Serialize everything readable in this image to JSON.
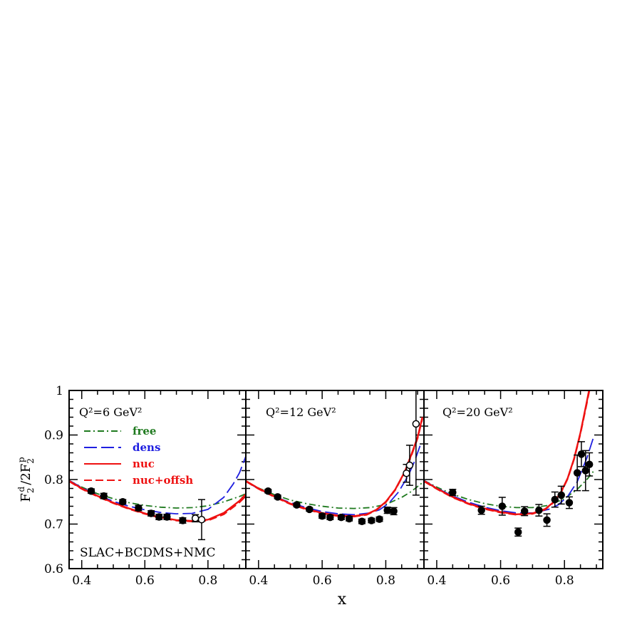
{
  "chart_data": {
    "type": "line",
    "xlabel": "x",
    "ylabel": "F2d/2F2p",
    "ylim": [
      0.6,
      1.0
    ],
    "yticks": [
      "0.6",
      "0.7",
      "0.8",
      "0.9",
      "1"
    ],
    "grid": false,
    "dataset_label": "SLAC+BCDMS+NMC",
    "legend": {
      "placement": "top-left of first panel",
      "entries": [
        {
          "label": "free",
          "color": "#1f7a1f",
          "style": "dash-dot"
        },
        {
          "label": "dens",
          "color": "#1f1fe0",
          "style": "long-dash"
        },
        {
          "label": "nuc",
          "color": "#ee1111",
          "style": "solid"
        },
        {
          "label": "nuc+offsh",
          "color": "#ee1111",
          "style": "dashed"
        }
      ]
    },
    "panels": [
      {
        "title": "Q²=6 GeV²",
        "xlim": [
          0.36,
          0.92
        ],
        "xticks": [
          "0.4",
          "0.6",
          "0.8"
        ],
        "data_filled": [
          {
            "x": 0.43,
            "y": 0.774,
            "err": 0.005
          },
          {
            "x": 0.47,
            "y": 0.763,
            "err": 0.006
          },
          {
            "x": 0.53,
            "y": 0.75,
            "err": 0.005
          },
          {
            "x": 0.58,
            "y": 0.736,
            "err": 0.006
          },
          {
            "x": 0.62,
            "y": 0.724,
            "err": 0.006
          },
          {
            "x": 0.645,
            "y": 0.716,
            "err": 0.006
          },
          {
            "x": 0.67,
            "y": 0.716,
            "err": 0.006
          },
          {
            "x": 0.72,
            "y": 0.708,
            "err": 0.006
          }
        ],
        "data_open": [
          {
            "x": 0.76,
            "y": 0.713,
            "err": 0.008
          },
          {
            "x": 0.78,
            "y": 0.71,
            "err": 0.045
          }
        ],
        "curves": {
          "free": {
            "x": [
              0.36,
              0.4,
              0.45,
              0.5,
              0.55,
              0.6,
              0.65,
              0.7,
              0.75,
              0.8,
              0.85,
              0.9,
              0.92
            ],
            "y": [
              0.798,
              0.783,
              0.768,
              0.757,
              0.748,
              0.742,
              0.738,
              0.736,
              0.737,
              0.741,
              0.75,
              0.762,
              0.768
            ]
          },
          "dens": {
            "x": [
              0.36,
              0.4,
              0.45,
              0.5,
              0.55,
              0.6,
              0.65,
              0.7,
              0.75,
              0.8,
              0.85,
              0.88,
              0.9,
              0.92
            ],
            "y": [
              0.798,
              0.782,
              0.765,
              0.751,
              0.74,
              0.732,
              0.726,
              0.723,
              0.724,
              0.733,
              0.76,
              0.79,
              0.815,
              0.852
            ]
          },
          "nuc": {
            "x": [
              0.36,
              0.4,
              0.45,
              0.5,
              0.55,
              0.6,
              0.65,
              0.7,
              0.75,
              0.8,
              0.85,
              0.9,
              0.92
            ],
            "y": [
              0.797,
              0.78,
              0.763,
              0.748,
              0.735,
              0.724,
              0.715,
              0.709,
              0.707,
              0.71,
              0.725,
              0.752,
              0.767
            ]
          },
          "nuc+offsh": {
            "x": [
              0.36,
              0.4,
              0.45,
              0.5,
              0.55,
              0.6,
              0.65,
              0.7,
              0.75,
              0.8,
              0.85,
              0.9,
              0.92
            ],
            "y": [
              0.796,
              0.779,
              0.762,
              0.747,
              0.734,
              0.723,
              0.714,
              0.708,
              0.706,
              0.708,
              0.722,
              0.749,
              0.763
            ]
          }
        }
      },
      {
        "title": "Q²=12 GeV²",
        "xlim": [
          0.36,
          0.92
        ],
        "xticks": [
          "0.4",
          "0.6",
          "0.8"
        ],
        "data_filled": [
          {
            "x": 0.43,
            "y": 0.774,
            "err": 0.004
          },
          {
            "x": 0.46,
            "y": 0.761,
            "err": 0.004
          },
          {
            "x": 0.52,
            "y": 0.743,
            "err": 0.004
          },
          {
            "x": 0.56,
            "y": 0.733,
            "err": 0.004
          },
          {
            "x": 0.6,
            "y": 0.718,
            "err": 0.005
          },
          {
            "x": 0.625,
            "y": 0.715,
            "err": 0.005
          },
          {
            "x": 0.66,
            "y": 0.715,
            "err": 0.005
          },
          {
            "x": 0.685,
            "y": 0.712,
            "err": 0.005
          },
          {
            "x": 0.725,
            "y": 0.706,
            "err": 0.005
          },
          {
            "x": 0.755,
            "y": 0.708,
            "err": 0.005
          },
          {
            "x": 0.78,
            "y": 0.711,
            "err": 0.005
          },
          {
            "x": 0.805,
            "y": 0.731,
            "err": 0.007
          },
          {
            "x": 0.825,
            "y": 0.729,
            "err": 0.008
          }
        ],
        "data_open": [
          {
            "x": 0.865,
            "y": 0.814,
            "err": 0.02
          },
          {
            "x": 0.875,
            "y": 0.832,
            "err": 0.045
          },
          {
            "x": 0.895,
            "y": 0.925,
            "err": 0.16
          }
        ],
        "curves": {
          "free": {
            "x": [
              0.36,
              0.4,
              0.45,
              0.5,
              0.55,
              0.6,
              0.65,
              0.7,
              0.75,
              0.8,
              0.85,
              0.88,
              0.91,
              0.92
            ],
            "y": [
              0.796,
              0.781,
              0.766,
              0.754,
              0.746,
              0.74,
              0.736,
              0.735,
              0.737,
              0.744,
              0.76,
              0.773,
              0.79,
              0.797
            ]
          },
          "dens": {
            "x": [
              0.36,
              0.4,
              0.45,
              0.5,
              0.55,
              0.6,
              0.65,
              0.7,
              0.75,
              0.78,
              0.81,
              0.84,
              0.87,
              0.89,
              0.91
            ],
            "y": [
              0.796,
              0.779,
              0.762,
              0.748,
              0.737,
              0.728,
              0.723,
              0.721,
              0.725,
              0.732,
              0.747,
              0.772,
              0.808,
              0.84,
              0.88
            ]
          },
          "nuc": {
            "x": [
              0.36,
              0.4,
              0.45,
              0.5,
              0.55,
              0.6,
              0.65,
              0.7,
              0.74,
              0.77,
              0.8,
              0.83,
              0.86,
              0.88,
              0.9,
              0.915
            ],
            "y": [
              0.797,
              0.78,
              0.762,
              0.746,
              0.734,
              0.725,
              0.719,
              0.718,
              0.722,
              0.732,
              0.75,
              0.778,
              0.818,
              0.855,
              0.895,
              0.94
            ]
          },
          "nuc+offsh": {
            "x": [
              0.36,
              0.4,
              0.45,
              0.5,
              0.55,
              0.6,
              0.65,
              0.7,
              0.74,
              0.77,
              0.8,
              0.83,
              0.86,
              0.88,
              0.9,
              0.915
            ],
            "y": [
              0.796,
              0.779,
              0.761,
              0.745,
              0.733,
              0.724,
              0.718,
              0.717,
              0.721,
              0.731,
              0.749,
              0.777,
              0.817,
              0.853,
              0.893,
              0.937
            ]
          }
        }
      },
      {
        "title": "Q²=20 GeV²",
        "xlim": [
          0.36,
          0.92
        ],
        "xticks": [
          "0.4",
          "0.6",
          "0.8"
        ],
        "data_filled": [
          {
            "x": 0.45,
            "y": 0.771,
            "err": 0.007
          },
          {
            "x": 0.54,
            "y": 0.731,
            "err": 0.009
          },
          {
            "x": 0.605,
            "y": 0.74,
            "err": 0.02
          },
          {
            "x": 0.655,
            "y": 0.682,
            "err": 0.009
          },
          {
            "x": 0.675,
            "y": 0.729,
            "err": 0.01
          },
          {
            "x": 0.72,
            "y": 0.731,
            "err": 0.013
          },
          {
            "x": 0.745,
            "y": 0.709,
            "err": 0.014
          },
          {
            "x": 0.77,
            "y": 0.755,
            "err": 0.017
          },
          {
            "x": 0.79,
            "y": 0.765,
            "err": 0.02
          },
          {
            "x": 0.815,
            "y": 0.748,
            "err": 0.013
          },
          {
            "x": 0.84,
            "y": 0.815,
            "err": 0.04
          },
          {
            "x": 0.853,
            "y": 0.857,
            "err": 0.028
          },
          {
            "x": 0.866,
            "y": 0.82,
            "err": 0.045
          },
          {
            "x": 0.878,
            "y": 0.834,
            "err": 0.026
          }
        ],
        "data_open": [],
        "curves": {
          "free": {
            "x": [
              0.36,
              0.4,
              0.45,
              0.5,
              0.55,
              0.6,
              0.65,
              0.7,
              0.75,
              0.8,
              0.84,
              0.87,
              0.89
            ],
            "y": [
              0.798,
              0.783,
              0.767,
              0.755,
              0.746,
              0.74,
              0.737,
              0.737,
              0.742,
              0.757,
              0.778,
              0.8,
              0.818
            ]
          },
          "dens": {
            "x": [
              0.36,
              0.4,
              0.45,
              0.5,
              0.55,
              0.6,
              0.65,
              0.7,
              0.75,
              0.78,
              0.81,
              0.84,
              0.87,
              0.89
            ],
            "y": [
              0.798,
              0.781,
              0.763,
              0.749,
              0.738,
              0.73,
              0.725,
              0.725,
              0.733,
              0.743,
              0.762,
              0.795,
              0.848,
              0.893
            ]
          },
          "nuc": {
            "x": [
              0.36,
              0.4,
              0.45,
              0.5,
              0.55,
              0.6,
              0.65,
              0.7,
              0.74,
              0.77,
              0.79,
              0.81,
              0.83,
              0.85,
              0.87,
              0.885
            ],
            "y": [
              0.797,
              0.78,
              0.761,
              0.746,
              0.735,
              0.727,
              0.722,
              0.724,
              0.734,
              0.752,
              0.773,
              0.803,
              0.847,
              0.905,
              0.975,
              1.03
            ]
          },
          "nuc+offsh": {
            "x": [
              0.36,
              0.4,
              0.45,
              0.5,
              0.55,
              0.6,
              0.65,
              0.7,
              0.74,
              0.77,
              0.79,
              0.81,
              0.83,
              0.85,
              0.87,
              0.885
            ],
            "y": [
              0.796,
              0.779,
              0.76,
              0.745,
              0.734,
              0.726,
              0.721,
              0.723,
              0.733,
              0.751,
              0.772,
              0.802,
              0.846,
              0.903,
              0.972,
              1.025
            ]
          }
        }
      }
    ]
  }
}
